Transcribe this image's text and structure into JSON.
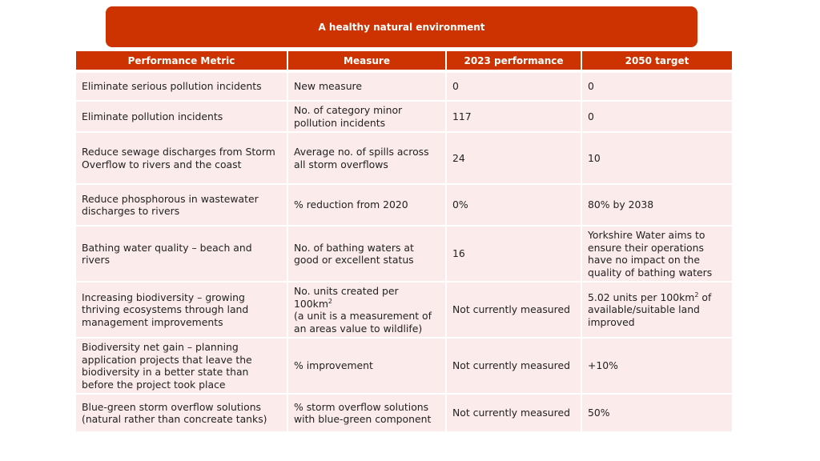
{
  "header": {
    "title": "A healthy natural environment"
  },
  "table": {
    "columns": [
      "Performance Metric",
      "Measure",
      "2023 performance",
      "2050 target"
    ],
    "rows": [
      {
        "metric": "Eliminate serious pollution incidents",
        "measure": "New measure",
        "performance_2023": "0",
        "target_2050": "0"
      },
      {
        "metric": "Eliminate pollution incidents",
        "measure": "No. of category minor pollution incidents",
        "performance_2023": "117",
        "target_2050": "0"
      },
      {
        "metric": "Reduce sewage discharges from Storm Overflow to rivers and the coast",
        "measure": "Average no. of spills across all storm overflows",
        "performance_2023": "24",
        "target_2050": "10"
      },
      {
        "metric": "Reduce phosphorous in  wastewater discharges to rivers",
        "measure": "% reduction from 2020",
        "performance_2023": "0%",
        "target_2050": "80% by 2038"
      },
      {
        "metric": "Bathing water quality – beach and rivers",
        "measure": "No. of bathing waters at good or excellent status",
        "performance_2023": "16",
        "target_2050": "Yorkshire Water aims to ensure their operations have no impact on the quality of bathing waters"
      },
      {
        "metric": "Increasing biodiversity – growing thriving ecosystems through land management improvements",
        "measure_line1": "No. units created per 100km",
        "measure_sup": "2",
        "measure_line2": "(a unit is a measurement of an areas value to wildlife)",
        "performance_2023": "Not currently measured",
        "target_part1": "5.02 units per 100km",
        "target_sup": "2",
        "target_part2": " of available/suitable land improved"
      },
      {
        "metric": "Biodiversity net gain – planning application projects that leave the biodiversity in a better state than before the project took place",
        "measure": "% improvement",
        "performance_2023": "Not currently measured",
        "target_2050": "+10%"
      },
      {
        "metric": "Blue-green storm overflow solutions (natural rather than concreate tanks)",
        "measure": "% storm overflow solutions with blue-green component",
        "performance_2023": "Not currently measured",
        "target_2050": "50%"
      }
    ]
  }
}
